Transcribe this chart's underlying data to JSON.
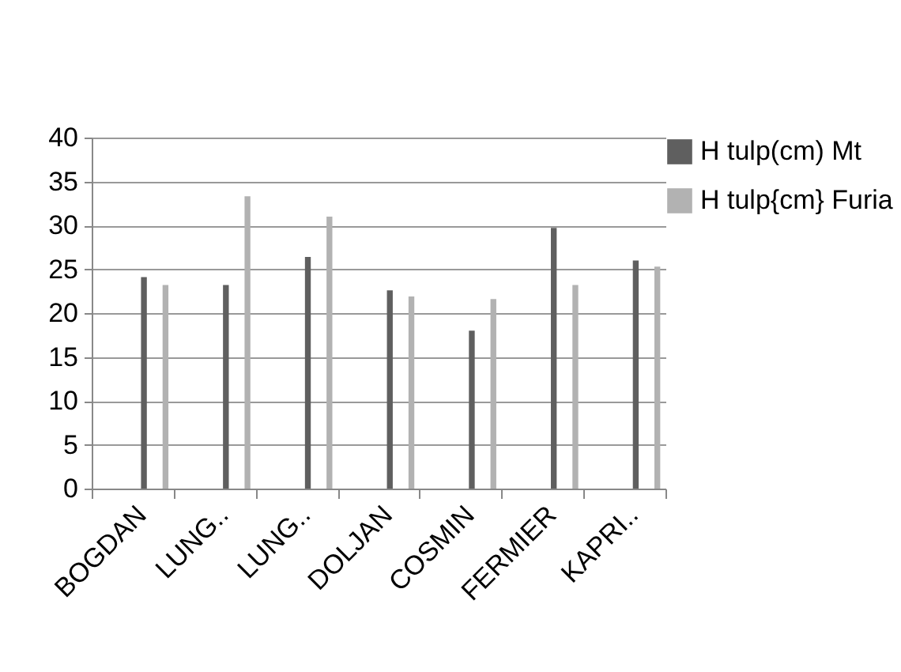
{
  "chart_data": {
    "type": "bar",
    "categories": [
      "BOGDAN",
      "LUNG..",
      "LUNG..",
      "DOLJAN",
      "COSMIN",
      "FERMIER",
      "KAPRI.."
    ],
    "series": [
      {
        "name": "H tulp(cm) Mt",
        "color": "#5f5f5f",
        "values": [
          24.1,
          23.2,
          26.4,
          22.6,
          18.0,
          29.7,
          26.0
        ]
      },
      {
        "name": "H tulp{cm} Furia",
        "color": "#b2b2b2",
        "values": [
          23.2,
          33.3,
          31.0,
          21.9,
          21.6,
          23.2,
          25.3
        ]
      }
    ],
    "ylim": [
      0,
      40
    ],
    "yticks": [
      0,
      5,
      10,
      15,
      20,
      25,
      30,
      35,
      40
    ],
    "grid": "y",
    "legend": "right"
  }
}
